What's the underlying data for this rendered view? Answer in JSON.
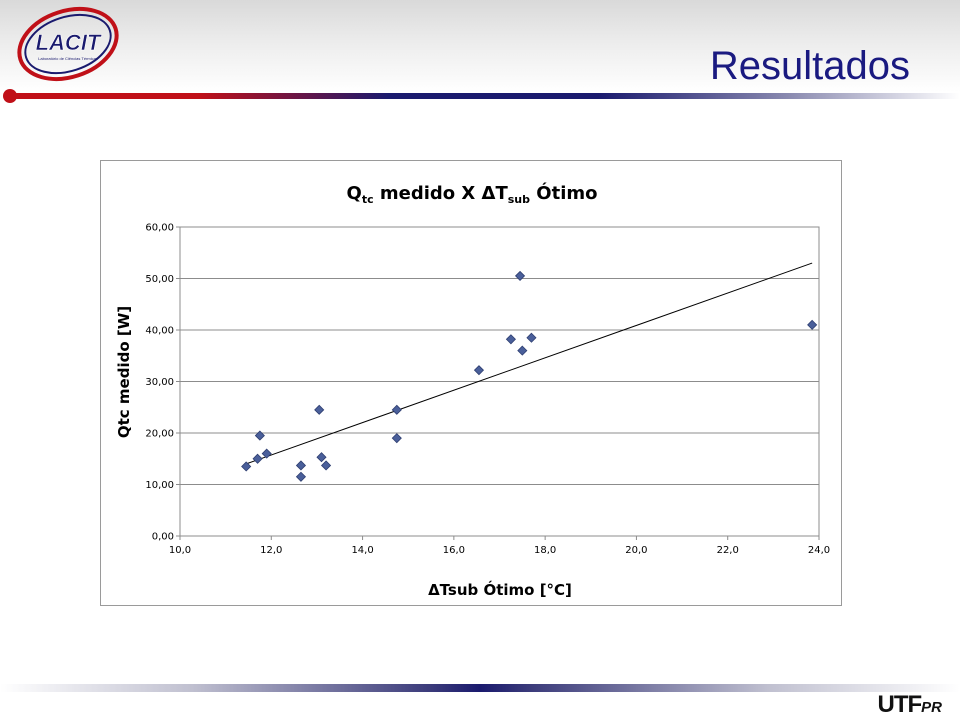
{
  "header": {
    "title": "Resultados",
    "logo_text": "LACIT",
    "logo_subtext": "Laboratório de Ciências Térmicas"
  },
  "footer": {
    "logo_main": "UTF",
    "logo_suffix": "PR"
  },
  "colors": {
    "title": "#1a1a80",
    "accent_red": "#c01018",
    "accent_navy": "#1a1a6e",
    "marker": "#4a5f9a",
    "marker_stroke": "#2e3e70",
    "gridline": "#8c8c8c"
  },
  "chart_data": {
    "type": "scatter",
    "title_main": "Q",
    "title_sub1": "tc",
    "title_mid": " medido X ΔT",
    "title_sub2": "sub",
    "title_end": " Ótimo",
    "xlabel": "ΔTsub Ótimo [°C]",
    "ylabel": "Qtc medido [W]",
    "xlim": [
      10,
      24
    ],
    "ylim": [
      0,
      60
    ],
    "x_ticks": [
      "10,0",
      "12,0",
      "14,0",
      "16,0",
      "18,0",
      "20,0",
      "22,0",
      "24,0"
    ],
    "y_ticks": [
      "0,00",
      "10,00",
      "20,00",
      "30,00",
      "40,00",
      "50,00",
      "60,00"
    ],
    "grid": "horizontal",
    "legend": "none",
    "points": [
      {
        "x": 11.45,
        "y": 13.5
      },
      {
        "x": 11.7,
        "y": 15.0
      },
      {
        "x": 11.75,
        "y": 19.5
      },
      {
        "x": 11.9,
        "y": 16.0
      },
      {
        "x": 12.65,
        "y": 11.5
      },
      {
        "x": 12.65,
        "y": 13.7
      },
      {
        "x": 13.05,
        "y": 24.5
      },
      {
        "x": 13.1,
        "y": 15.3
      },
      {
        "x": 13.2,
        "y": 13.7
      },
      {
        "x": 14.75,
        "y": 24.5
      },
      {
        "x": 14.75,
        "y": 19.0
      },
      {
        "x": 16.55,
        "y": 32.2
      },
      {
        "x": 17.25,
        "y": 38.2
      },
      {
        "x": 17.45,
        "y": 50.5
      },
      {
        "x": 17.5,
        "y": 36.0
      },
      {
        "x": 17.7,
        "y": 38.5
      },
      {
        "x": 23.85,
        "y": 41.0
      }
    ],
    "trendline": {
      "x": [
        11.45,
        23.85
      ],
      "y": [
        14.0,
        53.0
      ]
    }
  }
}
